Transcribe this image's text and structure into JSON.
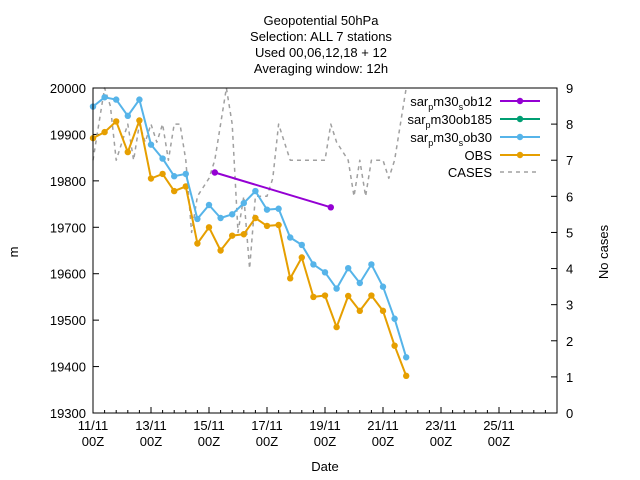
{
  "chart_data": {
    "type": "line",
    "title_lines": [
      "Geopotential 50hPa",
      "Selection: ALL       7 stations",
      "Used 00,06,12,18 + 12",
      "Averaging window: 12h"
    ],
    "xlabel": "Date",
    "ylabel": "m",
    "y2label": "No cases",
    "x_range": [
      0,
      40
    ],
    "y_range": [
      19300,
      20000
    ],
    "y2_range": [
      0,
      9
    ],
    "x_ticks": [
      {
        "x": 0,
        "line1": "11/11",
        "line2": "00Z"
      },
      {
        "x": 5,
        "line1": "13/11",
        "line2": "00Z"
      },
      {
        "x": 10,
        "line1": "15/11",
        "line2": "00Z"
      },
      {
        "x": 15,
        "line1": "17/11",
        "line2": "00Z"
      },
      {
        "x": 20,
        "line1": "19/11",
        "line2": "00Z"
      },
      {
        "x": 25,
        "line1": "21/11",
        "line2": "00Z"
      },
      {
        "x": 30,
        "line1": "23/11",
        "line2": "00Z"
      },
      {
        "x": 35,
        "line1": "25/11",
        "line2": "00Z"
      }
    ],
    "y_ticks": [
      "19300",
      "19400",
      "19500",
      "19600",
      "19700",
      "19800",
      "19900",
      "20000"
    ],
    "y2_ticks": [
      "0",
      "1",
      "2",
      "3",
      "4",
      "5",
      "6",
      "7",
      "8",
      "9"
    ],
    "legend_position": "top-right",
    "series": [
      {
        "name": "sar_m30_ob12",
        "legend_main": "sar",
        "legend_sub": "p",
        "legend_rest": "m30",
        "legend_sub2": "s",
        "legend_end": "ob12",
        "color": "#9400d3",
        "axis": "y1",
        "points": [
          [
            10.5,
            19818
          ],
          [
            20.5,
            19743
          ]
        ]
      },
      {
        "name": "sar_m30_ob185",
        "legend_main": "sar",
        "legend_sub": "p",
        "legend_rest": "m30",
        "legend_sub2": "",
        "legend_end": "ob185",
        "color": "#009e73",
        "axis": "y1",
        "points": []
      },
      {
        "name": "sar_m30_ob30",
        "legend_main": "sar",
        "legend_sub": "p",
        "legend_rest": "m30",
        "legend_sub2": "s",
        "legend_end": "ob30",
        "color": "#56b4e9",
        "axis": "y1",
        "points": [
          [
            0,
            19960
          ],
          [
            1,
            19980
          ],
          [
            2,
            19975
          ],
          [
            3,
            19940
          ],
          [
            4,
            19975
          ],
          [
            5,
            19878
          ],
          [
            6,
            19848
          ],
          [
            7,
            19810
          ],
          [
            8,
            19815
          ],
          [
            9,
            19718
          ],
          [
            10,
            19748
          ],
          [
            11,
            19720
          ],
          [
            12,
            19728
          ],
          [
            13,
            19752
          ],
          [
            14,
            19778
          ],
          [
            15,
            19738
          ],
          [
            16,
            19740
          ],
          [
            17,
            19678
          ],
          [
            18,
            19662
          ],
          [
            19,
            19620
          ],
          [
            20,
            19603
          ],
          [
            21,
            19568
          ],
          [
            22,
            19612
          ],
          [
            23,
            19580
          ],
          [
            24,
            19620
          ],
          [
            25,
            19572
          ],
          [
            26,
            19503
          ],
          [
            27,
            19420
          ]
        ]
      },
      {
        "name": "OBS",
        "legend_main": "OBS",
        "color": "#e69f00",
        "axis": "y1",
        "points": [
          [
            0,
            19892
          ],
          [
            1,
            19905
          ],
          [
            2,
            19928
          ],
          [
            3,
            19862
          ],
          [
            4,
            19930
          ],
          [
            5,
            19805
          ],
          [
            6,
            19815
          ],
          [
            7,
            19778
          ],
          [
            8,
            19788
          ],
          [
            9,
            19665
          ],
          [
            10,
            19700
          ],
          [
            11,
            19650
          ],
          [
            12,
            19682
          ],
          [
            13,
            19685
          ],
          [
            14,
            19720
          ],
          [
            15,
            19703
          ],
          [
            16,
            19705
          ],
          [
            17,
            19590
          ],
          [
            18,
            19635
          ],
          [
            19,
            19550
          ],
          [
            20,
            19553
          ],
          [
            21,
            19485
          ],
          [
            22,
            19552
          ],
          [
            23,
            19520
          ],
          [
            24,
            19553
          ],
          [
            25,
            19520
          ],
          [
            26,
            19445
          ],
          [
            27,
            19380
          ]
        ]
      },
      {
        "name": "CASES",
        "legend_main": "CASES",
        "color": "#a0a0a0",
        "axis": "y2",
        "dashed": true,
        "points": [
          [
            0,
            7
          ],
          [
            0.5,
            8
          ],
          [
            1,
            9
          ],
          [
            1.5,
            8.5
          ],
          [
            2,
            7
          ],
          [
            3,
            8
          ],
          [
            3.5,
            7
          ],
          [
            4,
            8
          ],
          [
            4.5,
            7.5
          ],
          [
            5,
            8
          ],
          [
            5.5,
            7.5
          ],
          [
            6,
            8
          ],
          [
            6.5,
            7
          ],
          [
            7,
            8
          ],
          [
            7.5,
            8
          ],
          [
            8,
            7
          ],
          [
            8.5,
            5
          ],
          [
            9,
            6
          ],
          [
            10,
            6.5
          ],
          [
            10.5,
            7
          ],
          [
            11,
            8
          ],
          [
            11.5,
            9
          ],
          [
            12,
            8
          ],
          [
            12.5,
            5
          ],
          [
            13,
            6
          ],
          [
            13.5,
            4
          ],
          [
            14,
            6
          ],
          [
            14.5,
            6
          ],
          [
            15,
            6
          ],
          [
            15.5,
            6.5
          ],
          [
            16,
            8
          ],
          [
            16.5,
            7.5
          ],
          [
            17,
            7
          ],
          [
            18,
            7
          ],
          [
            19,
            7
          ],
          [
            20,
            7
          ],
          [
            20.5,
            8
          ],
          [
            21,
            7.5
          ],
          [
            22,
            7
          ],
          [
            22.5,
            6
          ],
          [
            23,
            7
          ],
          [
            23.5,
            6
          ],
          [
            24,
            7
          ],
          [
            25,
            7
          ],
          [
            25.5,
            6.5
          ],
          [
            26,
            7
          ],
          [
            26.5,
            8
          ],
          [
            27,
            9
          ]
        ]
      }
    ]
  }
}
